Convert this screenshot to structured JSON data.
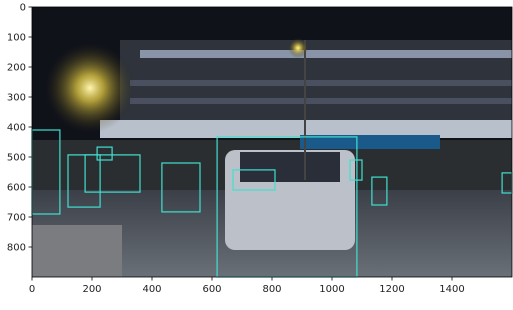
{
  "chart_data": {
    "type": "image",
    "xlim": [
      0,
      1600
    ],
    "ylim": [
      900,
      0
    ],
    "xticks": [
      0,
      200,
      400,
      600,
      800,
      1000,
      1200,
      1400
    ],
    "yticks": [
      0,
      100,
      200,
      300,
      400,
      500,
      600,
      700,
      800
    ],
    "box_color": "#40e0d0",
    "boxes": [
      {
        "x0": 617,
        "y0": 433,
        "x1": 1083,
        "y1": 900
      },
      {
        "x0": 0,
        "y0": 410,
        "x1": 93,
        "y1": 690
      },
      {
        "x0": 120,
        "y0": 493,
        "x1": 227,
        "y1": 667
      },
      {
        "x0": 177,
        "y0": 493,
        "x1": 360,
        "y1": 617
      },
      {
        "x0": 433,
        "y0": 520,
        "x1": 560,
        "y1": 683
      },
      {
        "x0": 670,
        "y0": 543,
        "x1": 810,
        "y1": 610
      },
      {
        "x0": 1060,
        "y0": 510,
        "x1": 1100,
        "y1": 577
      },
      {
        "x0": 1133,
        "y0": 567,
        "x1": 1183,
        "y1": 660
      },
      {
        "x0": 1567,
        "y0": 553,
        "x1": 1600,
        "y1": 620
      },
      {
        "x0": 217,
        "y0": 467,
        "x1": 267,
        "y1": 510
      }
    ]
  }
}
